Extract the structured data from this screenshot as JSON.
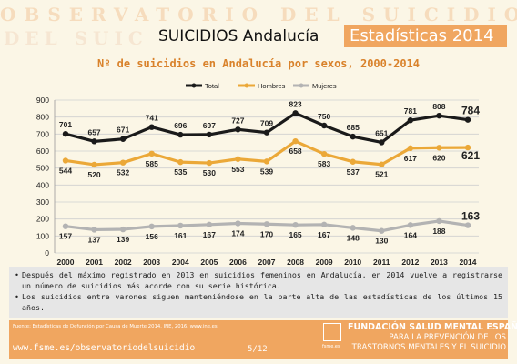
{
  "header": {
    "observatorio": "OBSERVATORIO DEL SUICIDIO",
    "ghost_text": "DEL SUIC",
    "title": "SUICIDIOS Andalucía",
    "box_label": "Estadísticas 2014"
  },
  "chart_data": {
    "type": "line",
    "title": "Nº de suicidios en Andalucía por sexos, 2000-2014",
    "x": [
      "2000",
      "2001",
      "2002",
      "2003",
      "2004",
      "2005",
      "2006",
      "2007",
      "2008",
      "2009",
      "2010",
      "2011",
      "2012",
      "2013",
      "2014"
    ],
    "ylim": [
      0,
      900
    ],
    "yticks": [
      0,
      100,
      200,
      300,
      400,
      500,
      600,
      700,
      800,
      900
    ],
    "grid": true,
    "legend_position": "top",
    "series": [
      {
        "name": "Total",
        "color": "#1a1a1a",
        "values": [
          701,
          657,
          671,
          741,
          696,
          697,
          727,
          709,
          823,
          750,
          685,
          651,
          781,
          808,
          784
        ]
      },
      {
        "name": "Hombres",
        "color": "#eba838",
        "values": [
          544,
          520,
          532,
          585,
          535,
          530,
          553,
          539,
          658,
          583,
          537,
          521,
          617,
          620,
          621
        ]
      },
      {
        "name": "Mujeres",
        "color": "#b3b3b3",
        "values": [
          157,
          137,
          139,
          156,
          161,
          167,
          174,
          170,
          165,
          167,
          148,
          130,
          164,
          188,
          163
        ]
      }
    ]
  },
  "notes": [
    "Después del máximo registrado en 2013 en suicidios femeninos en Andalucía, en 2014 vuelve a registrarse un número de suicidios más acorde con su serie histórica.",
    "Los suicidios entre varones siguen manteniéndose en la parte alta de las estadísticas de los últimos 15 años."
  ],
  "footer": {
    "source": "Fuente: Estadísticas de Defunción por Causa de Muerte 2014. INE, 2016. www.ine.es",
    "url": "www.fsme.es/observatoriodelsuicidio",
    "page": "5/12",
    "logo_text": "fsme.es",
    "foundation_line1": "FUNDACIÓN SALUD MENTAL ESPAÑA",
    "foundation_line2": "PARA LA PREVENCIÓN DE LOS",
    "foundation_line3": "TRASTORNOS MENTALES Y EL SUICIDIO"
  }
}
